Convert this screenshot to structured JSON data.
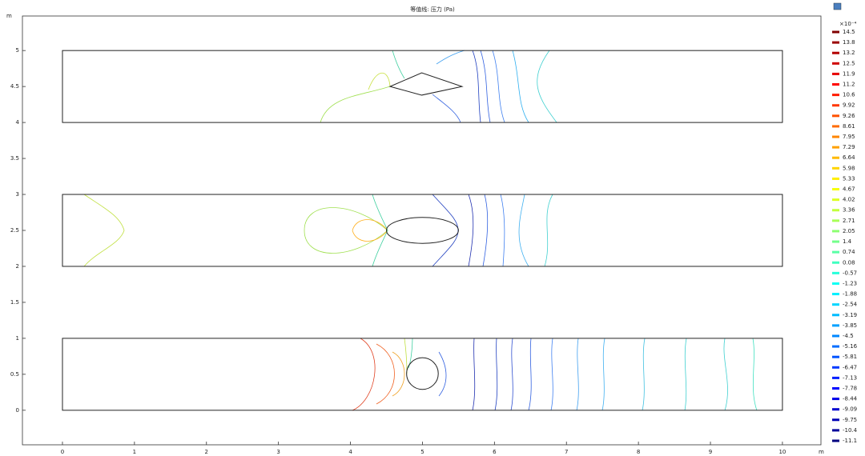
{
  "chart_data": {
    "type": "contour",
    "title": "等值线: 压力 (Pa)",
    "x_label": "m",
    "y_label": "m",
    "xlim": [
      -0.556,
      10.535
    ],
    "ylim": [
      -0.48,
      5.48
    ],
    "xticks": [
      0,
      1,
      2,
      3,
      4,
      5,
      6,
      7,
      8,
      9,
      10
    ],
    "yticks": [
      0,
      0.5,
      1,
      1.5,
      2,
      2.5,
      3,
      3.5,
      4,
      4.5,
      5
    ],
    "colormap": "jet",
    "colorbar": {
      "label": "×10⁻⁴",
      "levels": [
        14.5,
        13.8,
        13.2,
        12.5,
        11.9,
        11.2,
        10.6,
        9.92,
        9.26,
        8.61,
        7.95,
        7.29,
        6.64,
        5.98,
        5.33,
        4.67,
        4.02,
        3.36,
        2.71,
        2.05,
        1.4,
        0.74,
        0.08,
        -0.57,
        -1.23,
        -1.88,
        -2.54,
        -3.19,
        -3.85,
        -4.5,
        -5.16,
        -5.81,
        -6.47,
        -7.13,
        -7.78,
        -8.44,
        -9.09,
        -9.75,
        -10.4,
        -11.1
      ]
    },
    "channels": [
      {
        "x": [
          0,
          10
        ],
        "y": [
          4,
          5
        ]
      },
      {
        "x": [
          0,
          10
        ],
        "y": [
          2,
          3
        ]
      },
      {
        "x": [
          0,
          10
        ],
        "y": [
          0,
          1
        ]
      }
    ],
    "obstacles": [
      {
        "shape": "polygon",
        "x": [
          4.55,
          4.99,
          5.55,
          4.99
        ],
        "y": [
          4.5,
          4.69,
          4.5,
          4.38
        ]
      },
      {
        "shape": "ellipse",
        "x": [
          5
        ],
        "y": [
          2.5
        ],
        "rx": 0.5,
        "ry": 0.18
      },
      {
        "shape": "ellipse",
        "x": [
          5
        ],
        "y": [
          0.51
        ],
        "rx": 0.22,
        "ry": 0.22
      }
    ]
  }
}
